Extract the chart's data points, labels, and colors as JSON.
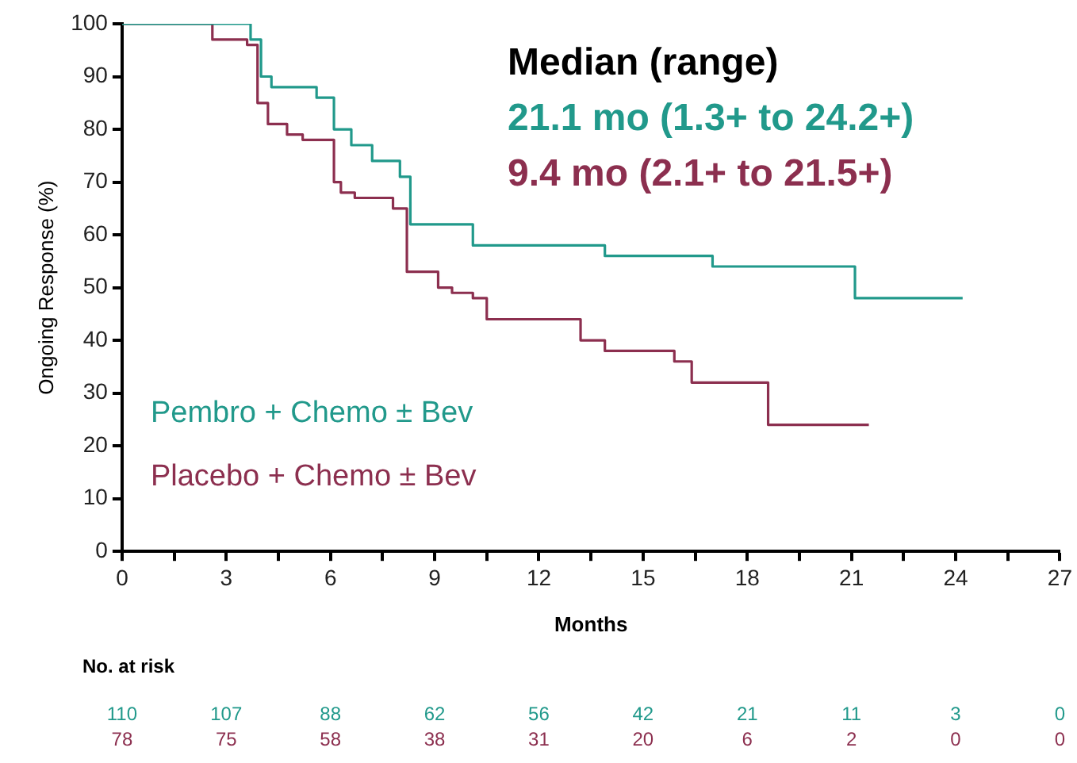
{
  "chart_data": {
    "type": "step",
    "xlabel": "Months",
    "ylabel": "Ongoing Response (%)",
    "xlim": [
      0,
      27
    ],
    "xticks": [
      0,
      {
        "value": 1.5,
        "label": null
      },
      3,
      {
        "value": 4.5,
        "label": null
      },
      6,
      {
        "value": 7.5,
        "label": null
      },
      9,
      {
        "value": 10.5,
        "label": null
      },
      12,
      {
        "value": 13.5,
        "label": null
      },
      15,
      {
        "value": 16.5,
        "label": null
      },
      18,
      {
        "value": 19.5,
        "label": null
      },
      21,
      {
        "value": 22.5,
        "label": null
      },
      24,
      {
        "value": 25.5,
        "label": null
      },
      27
    ],
    "ylim": [
      0,
      100
    ],
    "yticks": [
      0,
      10,
      20,
      30,
      40,
      50,
      60,
      70,
      80,
      90,
      100
    ],
    "grid": false,
    "legend": "bottom left",
    "marker": "none",
    "line_style": "solid",
    "series": [
      {
        "name": "Pembro + Chemo ± Bev",
        "color": "#21998b",
        "x": [
          0,
          3.7,
          4.0,
          4.3,
          5.6,
          6.1,
          6.6,
          7.2,
          8.0,
          8.3,
          10.1,
          13.9,
          17.0,
          21.1,
          24.2
        ],
        "values": [
          100,
          97,
          90,
          88,
          86,
          80,
          77,
          74,
          71,
          62,
          58,
          56,
          54,
          48,
          48
        ]
      },
      {
        "name": "Placebo + Chemo ± Bev",
        "color": "#8c2f4f",
        "x": [
          0,
          2.6,
          3.6,
          3.9,
          4.2,
          4.75,
          5.2,
          6.1,
          6.3,
          6.7,
          7.8,
          8.2,
          9.1,
          9.5,
          10.1,
          10.5,
          13.2,
          13.9,
          15.9,
          16.4,
          18.6,
          21.5
        ],
        "values": [
          100,
          97,
          96,
          85,
          81,
          79,
          78,
          70,
          68,
          67,
          65,
          53,
          50,
          49,
          48,
          44,
          40,
          38,
          36,
          32,
          24,
          24
        ]
      }
    ],
    "annotations": [
      "Median (range)",
      "21.1 mo (1.3+ to 24.2+)",
      "9.4 mo (2.1+ to 21.5+)",
      "No. at risk",
      "110",
      "107",
      "88",
      "62",
      "56",
      "42",
      "21",
      "11",
      "3",
      "0",
      "78",
      "75",
      "58",
      "38",
      "31",
      "20",
      "6",
      "2",
      "0",
      "0"
    ]
  }
}
